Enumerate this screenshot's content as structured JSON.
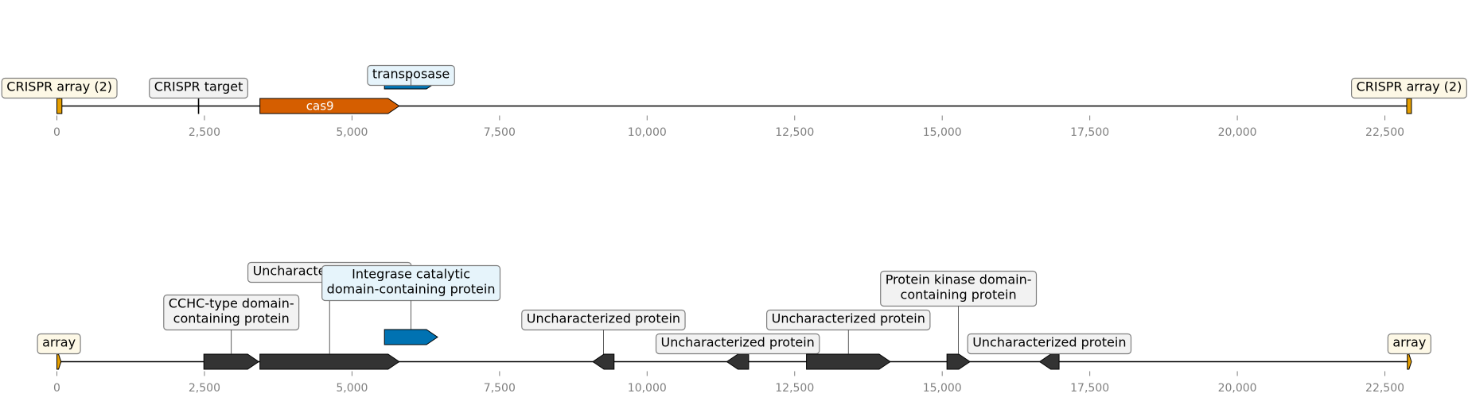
{
  "colors": {
    "crispr_array": "#e69f00",
    "cas9": "#d55e00",
    "transposase": "#0072b2",
    "integrase": "#0072b2",
    "other_gene": "#333333",
    "crispr_label_bg": "#fdf8e6",
    "transposase_label_bg": "#e6f4fb",
    "gray_label_bg": "#f2f2f2",
    "axis_tick_color": "#808080"
  },
  "tracks": [
    {
      "id": "top",
      "ticks": [
        0,
        2500,
        5000,
        7500,
        10000,
        12500,
        15000,
        17500,
        20000,
        22500
      ],
      "tick_labels": [
        "0",
        "2,500",
        "5,000",
        "7,500",
        "10,000",
        "12,500",
        "15,000",
        "17,500",
        "20,000",
        "22,500"
      ],
      "range": [
        0,
        22950
      ],
      "features": [
        {
          "name": "crispr-array-left",
          "start": 0,
          "end": 85,
          "strand": 0,
          "color_key": "crispr_array",
          "label": "CRISPR array (2)",
          "label_bg_key": "crispr_label_bg",
          "label_level": 1
        },
        {
          "name": "crispr-target",
          "start": 2395,
          "end": 2405,
          "strand": 0,
          "kind": "tick",
          "label": "CRISPR target",
          "label_bg_key": "gray_label_bg",
          "label_level": 1
        },
        {
          "name": "cas9-gene",
          "start": 3440,
          "end": 5800,
          "strand": 1,
          "color_key": "cas9",
          "inside_label": "cas9"
        },
        {
          "name": "transposase-gene",
          "start": 5550,
          "end": 6450,
          "strand": 1,
          "color_key": "transposase",
          "row": 1,
          "label": "transposase",
          "label_bg_key": "transposase_label_bg",
          "label_level": 0.5
        },
        {
          "name": "crispr-array-right",
          "start": 22870,
          "end": 22950,
          "strand": 0,
          "color_key": "crispr_array",
          "label": "CRISPR array (2)",
          "label_bg_key": "crispr_label_bg",
          "label_level": 1
        }
      ]
    },
    {
      "id": "bottom",
      "ticks": [
        0,
        2500,
        5000,
        7500,
        10000,
        12500,
        15000,
        17500,
        20000,
        22500
      ],
      "tick_labels": [
        "0",
        "2,500",
        "5,000",
        "7,500",
        "10,000",
        "12,500",
        "15,000",
        "17,500",
        "20,000",
        "22,500"
      ],
      "range": [
        0,
        22950
      ],
      "features": [
        {
          "name": "array-left",
          "start": 0,
          "end": 70,
          "strand": 1,
          "color_key": "crispr_array",
          "label": "array",
          "label_bg_key": "crispr_label_bg",
          "label_level": 1
        },
        {
          "name": "cchc-domain-protein",
          "start": 2490,
          "end": 3420,
          "strand": 1,
          "color_key": "other_gene",
          "label": "CCHC-type domain-\ncontaining protein",
          "label_bg_key": "gray_label_bg",
          "label_level": 2
        },
        {
          "name": "uncharacterized-protein-1",
          "start": 3440,
          "end": 5800,
          "strand": 1,
          "color_key": "other_gene",
          "label": "Uncharacterized protein",
          "label_bg_key": "gray_label_bg",
          "label_level": 4
        },
        {
          "name": "integrase-gene",
          "start": 5550,
          "end": 6450,
          "strand": 1,
          "color_key": "integrase",
          "row": 1,
          "label": "Integrase catalytic\ndomain-containing protein",
          "label_bg_key": "transposase_label_bg",
          "label_level": 2.2
        },
        {
          "name": "uncharacterized-protein-2",
          "start": 9080,
          "end": 9440,
          "strand": -1,
          "color_key": "other_gene",
          "label": "Uncharacterized protein",
          "label_bg_key": "gray_label_bg",
          "label_level": 2
        },
        {
          "name": "uncharacterized-protein-3",
          "start": 11350,
          "end": 11720,
          "strand": -1,
          "color_key": "other_gene",
          "label": "Uncharacterized protein",
          "label_bg_key": "gray_label_bg",
          "label_level": 1
        },
        {
          "name": "uncharacterized-protein-4",
          "start": 12700,
          "end": 14120,
          "strand": 1,
          "color_key": "other_gene",
          "label": "Uncharacterized protein",
          "label_bg_key": "gray_label_bg",
          "label_level": 2
        },
        {
          "name": "protein-kinase-domain-protein",
          "start": 15080,
          "end": 15470,
          "strand": 1,
          "color_key": "other_gene",
          "label": "Protein kinase domain-\ncontaining protein",
          "label_bg_key": "gray_label_bg",
          "label_level": 3
        },
        {
          "name": "uncharacterized-protein-5",
          "start": 16650,
          "end": 16980,
          "strand": -1,
          "color_key": "other_gene",
          "label": "Uncharacterized protein",
          "label_bg_key": "gray_label_bg",
          "label_level": 1
        },
        {
          "name": "array-right",
          "start": 22880,
          "end": 22950,
          "strand": 1,
          "color_key": "crispr_array",
          "label": "array",
          "label_bg_key": "crispr_label_bg",
          "label_level": 1
        }
      ]
    }
  ]
}
